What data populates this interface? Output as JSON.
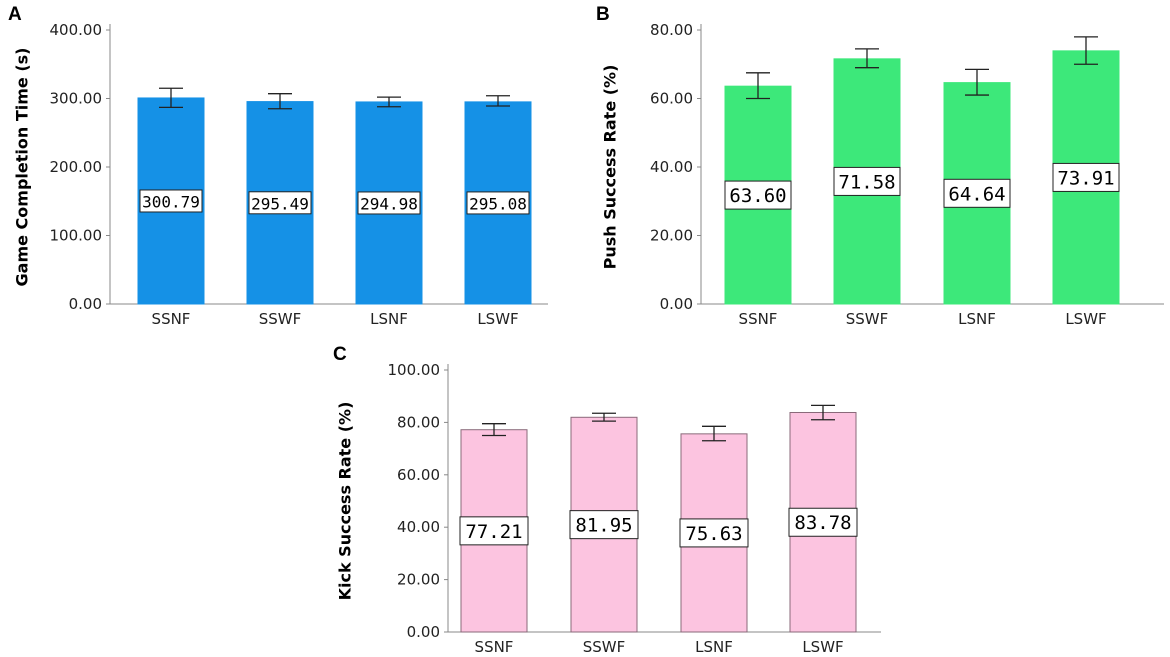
{
  "chart_data": [
    {
      "panel": "A",
      "type": "bar",
      "categories": [
        "SSNF",
        "SSWF",
        "LSNF",
        "LSWF"
      ],
      "values": [
        300.79,
        295.49,
        294.98,
        295.08
      ],
      "error_upper": [
        315,
        307,
        302,
        304
      ],
      "error_lower": [
        287,
        285,
        288,
        289
      ],
      "ylabel": "Game Completion Time (s)",
      "ylim": [
        0,
        400
      ],
      "yticks": [
        "0.00",
        "100.00",
        "200.00",
        "300.00",
        "400.00"
      ],
      "value_labels": [
        "300.79",
        "295.49",
        "294.98",
        "295.08"
      ],
      "bar_color": "#1591e6",
      "bar_edge": "#1591e6"
    },
    {
      "panel": "B",
      "type": "bar",
      "categories": [
        "SSNF",
        "SSWF",
        "LSNF",
        "LSWF"
      ],
      "values": [
        63.6,
        71.58,
        64.64,
        73.91
      ],
      "error_upper": [
        67.5,
        74.5,
        68.5,
        78
      ],
      "error_lower": [
        60,
        69,
        61,
        70
      ],
      "ylabel": "Push Success Rate (%)",
      "ylim": [
        0,
        80
      ],
      "yticks": [
        "0.00",
        "20.00",
        "40.00",
        "60.00",
        "80.00"
      ],
      "value_labels": [
        "63.60",
        "71.58",
        "64.64",
        "73.91"
      ],
      "bar_color": "#3de87a",
      "bar_edge": "#3de87a"
    },
    {
      "panel": "C",
      "type": "bar",
      "categories": [
        "SSNF",
        "SSWF",
        "LSNF",
        "LSWF"
      ],
      "values": [
        77.21,
        81.95,
        75.63,
        83.78
      ],
      "error_upper": [
        79.5,
        83.5,
        78.5,
        86.5
      ],
      "error_lower": [
        75,
        80.5,
        73,
        81
      ],
      "ylabel": "Kick Success Rate (%)",
      "ylim": [
        0,
        100
      ],
      "yticks": [
        "0.00",
        "20.00",
        "40.00",
        "60.00",
        "80.00",
        "100.00"
      ],
      "value_labels": [
        "77.21",
        "81.95",
        "75.63",
        "83.78"
      ],
      "bar_color": "#fcc4e0",
      "bar_edge": "#8a6a7a"
    }
  ]
}
